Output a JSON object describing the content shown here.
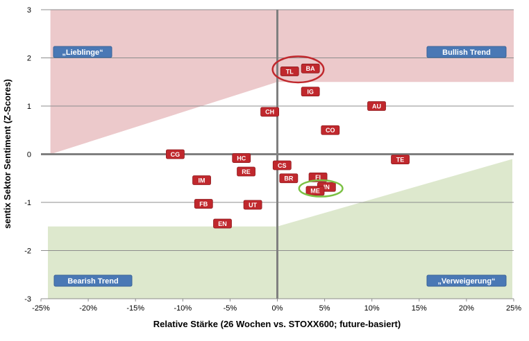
{
  "chart_data": {
    "type": "scatter",
    "title": "",
    "xlabel": "Relative Stärke (26 Wochen vs. STOXX600; future-basiert)",
    "ylabel": "sentix Sektor Sentiment (Z-Scores)",
    "xlim": [
      -0.25,
      0.25
    ],
    "ylim": [
      -3,
      3
    ],
    "x_ticks": [
      "-25%",
      "-20%",
      "-15%",
      "-10%",
      "-5%",
      "0%",
      "5%",
      "10%",
      "15%",
      "20%",
      "25%"
    ],
    "y_ticks": [
      "3",
      "2",
      "1",
      "0",
      "-1",
      "-2",
      "-3"
    ],
    "grid": "horizontal",
    "colors": {
      "point": "#c0282d",
      "bullish_zone": "#ecc9cb",
      "bearish_zone": "#dde8cd",
      "zone_label": "#4a78b5",
      "circle_red": "#c0282d",
      "circle_green": "#7bc144"
    },
    "points": [
      {
        "label": "TL",
        "x": 0.013,
        "y": 1.72
      },
      {
        "label": "BA",
        "x": 0.035,
        "y": 1.78
      },
      {
        "label": "IG",
        "x": 0.035,
        "y": 1.3
      },
      {
        "label": "AU",
        "x": 0.105,
        "y": 1.0
      },
      {
        "label": "CH",
        "x": -0.008,
        "y": 0.88
      },
      {
        "label": "CO",
        "x": 0.056,
        "y": 0.5
      },
      {
        "label": "CG",
        "x": -0.108,
        "y": 0.0
      },
      {
        "label": "HC",
        "x": -0.038,
        "y": -0.08
      },
      {
        "label": "TE",
        "x": 0.13,
        "y": -0.11
      },
      {
        "label": "CS",
        "x": 0.005,
        "y": -0.23
      },
      {
        "label": "RE",
        "x": -0.033,
        "y": -0.36
      },
      {
        "label": "BR",
        "x": 0.012,
        "y": -0.5
      },
      {
        "label": "FI",
        "x": 0.043,
        "y": -0.48
      },
      {
        "label": "IM",
        "x": -0.08,
        "y": -0.54
      },
      {
        "label": "IN",
        "x": 0.052,
        "y": -0.68
      },
      {
        "label": "ME",
        "x": 0.04,
        "y": -0.76
      },
      {
        "label": "FB",
        "x": -0.078,
        "y": -1.03
      },
      {
        "label": "UT",
        "x": -0.026,
        "y": -1.05
      },
      {
        "label": "EN",
        "x": -0.058,
        "y": -1.44
      }
    ],
    "highlights": [
      {
        "color": "red",
        "cx": 0.022,
        "cy": 1.76,
        "rx": 0.027,
        "ry": 0.27
      },
      {
        "color": "green",
        "cx": 0.046,
        "cy": -0.71,
        "rx": 0.023,
        "ry": 0.17
      }
    ],
    "zones": {
      "bullish": {
        "upper": 3,
        "lower_left": 0.0,
        "lower_at_zero": 1.5,
        "lower_right": 1.5
      },
      "bearish": {
        "lower": -3,
        "upper_left": -1.5,
        "upper_at_zero": -1.5,
        "upper_right": -0.1
      }
    },
    "quadrant_labels": {
      "top_left": "„Lieblinge“",
      "top_right": "Bullish Trend",
      "bottom_left": "Bearish Trend",
      "bottom_right": "„Verweigerung“"
    }
  }
}
